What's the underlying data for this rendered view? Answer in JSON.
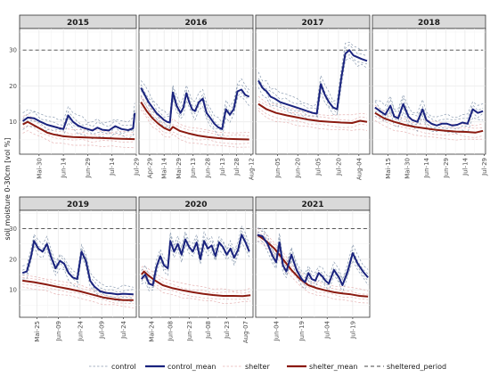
{
  "colors": {
    "control": "#8a9bb0",
    "control_mean": "#1a237e",
    "shelter": "#e6b3b3",
    "shelter_mean": "#8b1a10",
    "sheltered_period": "#444444"
  },
  "ylabel": "soil moisture 0-30cm [vol %]",
  "legend": [
    {
      "key": "control",
      "label": "control",
      "style": "dashed-light"
    },
    {
      "key": "control_mean",
      "label": "control_mean",
      "style": "solid-thick"
    },
    {
      "key": "shelter",
      "label": "shelter",
      "style": "dashed-light"
    },
    {
      "key": "shelter_mean",
      "label": "shelter_mean",
      "style": "solid-thick"
    },
    {
      "key": "sheltered_period",
      "label": "sheltered_period",
      "style": "dashed"
    }
  ],
  "chart_data": [
    {
      "type": "line",
      "title": "2015",
      "xlabel": "",
      "ylabel": "soil moisture 0-30cm [vol %]",
      "ylim": [
        1,
        36
      ],
      "yticks": [
        10,
        20,
        30
      ],
      "grid": true,
      "xlim": [
        "2015-05-18",
        "2015-07-29"
      ],
      "xticks": [
        "Mai-30",
        "Jun-14",
        "Jun-29",
        "Jul-14",
        "Jul-29"
      ],
      "sheltered_period": {
        "y": 30,
        "x": [
          "2015-05-20",
          "2015-07-28"
        ]
      },
      "series": [
        {
          "name": "control_mean",
          "x": [
            "2015-05-20",
            "2015-05-23",
            "2015-05-27",
            "2015-05-31",
            "2015-06-04",
            "2015-06-08",
            "2015-06-11",
            "2015-06-14",
            "2015-06-17",
            "2015-06-20",
            "2015-06-23",
            "2015-06-26",
            "2015-06-29",
            "2015-07-02",
            "2015-07-05",
            "2015-07-08",
            "2015-07-12",
            "2015-07-16",
            "2015-07-20",
            "2015-07-24",
            "2015-07-27",
            "2015-07-28"
          ],
          "values": [
            10.2,
            11.2,
            11.0,
            10.0,
            9.2,
            8.7,
            8.3,
            8.0,
            11.8,
            10.0,
            9.0,
            8.4,
            8.0,
            7.6,
            8.4,
            7.8,
            7.6,
            8.8,
            8.0,
            7.7,
            8.2,
            12.5
          ]
        },
        {
          "name": "shelter_mean",
          "x": [
            "2015-05-20",
            "2015-05-23",
            "2015-05-27",
            "2015-05-31",
            "2015-06-04",
            "2015-06-08",
            "2015-06-14",
            "2015-06-20",
            "2015-06-26",
            "2015-07-02",
            "2015-07-08",
            "2015-07-14",
            "2015-07-20",
            "2015-07-28"
          ],
          "values": [
            9.3,
            10.0,
            9.0,
            8.0,
            7.0,
            6.5,
            6.0,
            5.8,
            5.7,
            5.6,
            5.5,
            5.4,
            5.3,
            5.2
          ]
        }
      ]
    },
    {
      "type": "line",
      "title": "2016",
      "xlabel": "",
      "ylabel": "",
      "ylim": [
        1,
        36
      ],
      "yticks": [
        10,
        20,
        30
      ],
      "grid": true,
      "xlim": [
        "2016-04-18",
        "2016-08-14"
      ],
      "xticks": [
        "Apr-29",
        "Mai-14",
        "Mai-29",
        "Jun-13",
        "Jun-28",
        "Jul-13",
        "Jul-28",
        "Aug-12"
      ],
      "sheltered_period": {
        "y": 30,
        "x": [
          "2016-04-19",
          "2016-08-12"
        ]
      },
      "series": [
        {
          "name": "control_mean",
          "x": [
            "2016-04-20",
            "2016-04-24",
            "2016-04-28",
            "2016-05-02",
            "2016-05-06",
            "2016-05-10",
            "2016-05-14",
            "2016-05-17",
            "2016-05-20",
            "2016-05-23",
            "2016-05-27",
            "2016-05-31",
            "2016-06-03",
            "2016-06-06",
            "2016-06-09",
            "2016-06-12",
            "2016-06-15",
            "2016-06-19",
            "2016-06-23",
            "2016-06-27",
            "2016-07-01",
            "2016-07-05",
            "2016-07-09",
            "2016-07-13",
            "2016-07-17",
            "2016-07-21",
            "2016-07-25",
            "2016-07-29",
            "2016-08-02",
            "2016-08-06",
            "2016-08-10"
          ],
          "values": [
            19.5,
            17.5,
            15.5,
            14.0,
            12.5,
            11.5,
            10.5,
            10.0,
            9.8,
            18.2,
            14.5,
            12.5,
            14.0,
            18.0,
            15.5,
            13.5,
            13.0,
            15.5,
            16.5,
            12.5,
            11.0,
            9.5,
            8.5,
            8.0,
            13.5,
            12.0,
            13.5,
            18.5,
            19.0,
            17.5,
            17.0
          ]
        },
        {
          "name": "shelter_mean",
          "x": [
            "2016-04-20",
            "2016-04-26",
            "2016-05-02",
            "2016-05-08",
            "2016-05-14",
            "2016-05-20",
            "2016-05-23",
            "2016-05-30",
            "2016-06-08",
            "2016-06-18",
            "2016-06-28",
            "2016-07-08",
            "2016-07-18",
            "2016-07-28",
            "2016-08-10"
          ],
          "values": [
            15.5,
            13.0,
            11.0,
            9.5,
            8.3,
            7.6,
            8.6,
            7.5,
            6.8,
            6.2,
            5.8,
            5.5,
            5.3,
            5.2,
            5.1
          ]
        }
      ]
    },
    {
      "type": "line",
      "title": "2017",
      "xlabel": "",
      "ylabel": "",
      "ylim": [
        1,
        36
      ],
      "yticks": [
        10,
        20,
        30
      ],
      "grid": true,
      "xlim": [
        "2017-05-20",
        "2017-08-12"
      ],
      "xticks": [
        "Jun-05",
        "Jun-20",
        "Jul-05",
        "Jul-20",
        "Aug-04"
      ],
      "sheltered_period": {
        "y": 30,
        "x": [
          "2017-05-22",
          "2017-08-10"
        ]
      },
      "series": [
        {
          "name": "control_mean",
          "x": [
            "2017-05-22",
            "2017-05-25",
            "2017-05-28",
            "2017-05-31",
            "2017-06-03",
            "2017-06-07",
            "2017-06-11",
            "2017-06-15",
            "2017-06-19",
            "2017-06-23",
            "2017-06-27",
            "2017-07-01",
            "2017-07-04",
            "2017-07-07",
            "2017-07-10",
            "2017-07-13",
            "2017-07-16",
            "2017-07-19",
            "2017-07-22",
            "2017-07-25",
            "2017-07-28",
            "2017-07-31",
            "2017-08-03",
            "2017-08-06",
            "2017-08-10"
          ],
          "values": [
            21.5,
            19.5,
            18.5,
            17.0,
            16.5,
            15.5,
            15.0,
            14.5,
            14.0,
            13.5,
            13.0,
            12.5,
            12.3,
            20.5,
            17.5,
            15.5,
            14.0,
            13.5,
            22.0,
            29.0,
            30.0,
            28.5,
            28.0,
            27.5,
            27.0
          ]
        },
        {
          "name": "shelter_mean",
          "x": [
            "2017-05-22",
            "2017-05-28",
            "2017-06-04",
            "2017-06-12",
            "2017-06-20",
            "2017-06-28",
            "2017-07-06",
            "2017-07-14",
            "2017-07-22",
            "2017-07-30",
            "2017-08-05",
            "2017-08-10"
          ],
          "values": [
            15.0,
            13.5,
            12.5,
            11.8,
            11.2,
            10.6,
            10.2,
            10.0,
            9.8,
            9.7,
            10.3,
            10.0
          ]
        }
      ]
    },
    {
      "type": "line",
      "title": "2018",
      "xlabel": "",
      "ylabel": "",
      "ylim": [
        1,
        36
      ],
      "yticks": [
        10,
        20,
        30
      ],
      "grid": true,
      "xlim": [
        "2018-05-03",
        "2018-07-30"
      ],
      "xticks": [
        "Mai-15",
        "Mai-30",
        "Jun-14",
        "Jun-29",
        "Jul-14",
        "Jul-29"
      ],
      "sheltered_period": {
        "y": 30,
        "x": [
          "2018-05-05",
          "2018-07-28"
        ]
      },
      "series": [
        {
          "name": "control_mean",
          "x": [
            "2018-05-05",
            "2018-05-09",
            "2018-05-13",
            "2018-05-17",
            "2018-05-20",
            "2018-05-23",
            "2018-05-27",
            "2018-05-31",
            "2018-06-03",
            "2018-06-07",
            "2018-06-11",
            "2018-06-14",
            "2018-06-18",
            "2018-06-22",
            "2018-06-26",
            "2018-06-30",
            "2018-07-04",
            "2018-07-08",
            "2018-07-12",
            "2018-07-16",
            "2018-07-20",
            "2018-07-24",
            "2018-07-28"
          ],
          "values": [
            14.0,
            13.0,
            12.0,
            14.5,
            11.5,
            11.0,
            15.0,
            11.5,
            10.5,
            10.0,
            13.5,
            10.5,
            9.5,
            9.0,
            9.5,
            9.5,
            9.0,
            9.2,
            9.8,
            9.5,
            13.5,
            12.5,
            13.0
          ]
        },
        {
          "name": "shelter_mean",
          "x": [
            "2018-05-05",
            "2018-05-12",
            "2018-05-20",
            "2018-05-28",
            "2018-06-05",
            "2018-06-13",
            "2018-06-21",
            "2018-06-29",
            "2018-07-07",
            "2018-07-15",
            "2018-07-22",
            "2018-07-28"
          ],
          "values": [
            12.5,
            11.0,
            10.0,
            9.2,
            8.6,
            8.2,
            7.8,
            7.5,
            7.3,
            7.2,
            7.0,
            7.5
          ]
        }
      ]
    },
    {
      "type": "line",
      "title": "2019",
      "xlabel": "",
      "ylabel": "soil moisture 0-30cm [vol %]",
      "ylim": [
        1,
        36
      ],
      "yticks": [
        10,
        20,
        30
      ],
      "grid": true,
      "xlim": [
        "2019-05-13",
        "2019-08-02"
      ],
      "xticks": [
        "Mai-25",
        "Jun-09",
        "Jun-24",
        "Jul-09",
        "Jul-24"
      ],
      "sheltered_period": {
        "y": 30,
        "x": [
          "2019-05-15",
          "2019-07-31"
        ]
      },
      "series": [
        {
          "name": "control_mean",
          "x": [
            "2019-05-15",
            "2019-05-18",
            "2019-05-21",
            "2019-05-23",
            "2019-05-26",
            "2019-05-29",
            "2019-06-01",
            "2019-06-04",
            "2019-06-07",
            "2019-06-10",
            "2019-06-13",
            "2019-06-16",
            "2019-06-19",
            "2019-06-22",
            "2019-06-25",
            "2019-06-28",
            "2019-07-01",
            "2019-07-04",
            "2019-07-08",
            "2019-07-12",
            "2019-07-16",
            "2019-07-20",
            "2019-07-24",
            "2019-07-31"
          ],
          "values": [
            15.5,
            16.0,
            21.0,
            26.0,
            23.5,
            22.5,
            25.0,
            20.5,
            17.0,
            19.5,
            18.5,
            15.5,
            14.0,
            13.5,
            22.5,
            19.5,
            13.0,
            11.0,
            9.5,
            9.0,
            8.8,
            8.5,
            8.7,
            8.5
          ]
        },
        {
          "name": "shelter_mean",
          "x": [
            "2019-05-15",
            "2019-05-23",
            "2019-05-31",
            "2019-06-08",
            "2019-06-16",
            "2019-06-24",
            "2019-07-02",
            "2019-07-10",
            "2019-07-18",
            "2019-07-24",
            "2019-07-31"
          ],
          "values": [
            13.0,
            12.5,
            11.8,
            11.0,
            10.3,
            9.5,
            8.5,
            7.5,
            6.9,
            6.6,
            6.6
          ]
        }
      ]
    },
    {
      "type": "line",
      "title": "2020",
      "xlabel": "",
      "ylabel": "",
      "ylim": [
        1,
        36
      ],
      "yticks": [
        10,
        20,
        30
      ],
      "grid": true,
      "xlim": [
        "2020-05-14",
        "2020-08-13"
      ],
      "xticks": [
        "Mai-24",
        "Jun-08",
        "Jun-23",
        "Jul-08",
        "Jul-23",
        "Aug-07"
      ],
      "sheltered_period": {
        "y": 30,
        "x": [
          "2020-05-15",
          "2020-08-11"
        ]
      },
      "series": [
        {
          "name": "control_mean",
          "x": [
            "2020-05-16",
            "2020-05-19",
            "2020-05-22",
            "2020-05-25",
            "2020-05-28",
            "2020-05-31",
            "2020-06-03",
            "2020-06-06",
            "2020-06-08",
            "2020-06-11",
            "2020-06-14",
            "2020-06-17",
            "2020-06-20",
            "2020-06-23",
            "2020-06-26",
            "2020-06-29",
            "2020-07-02",
            "2020-07-05",
            "2020-07-08",
            "2020-07-11",
            "2020-07-14",
            "2020-07-17",
            "2020-07-20",
            "2020-07-23",
            "2020-07-26",
            "2020-07-29",
            "2020-08-01",
            "2020-08-04",
            "2020-08-07",
            "2020-08-10"
          ],
          "values": [
            13.5,
            15.0,
            12.0,
            11.5,
            17.5,
            21.0,
            18.0,
            17.0,
            26.0,
            22.5,
            25.0,
            21.5,
            26.5,
            24.0,
            22.5,
            25.5,
            20.0,
            26.0,
            23.5,
            24.5,
            21.0,
            25.5,
            24.0,
            21.5,
            23.5,
            20.5,
            23.0,
            28.0,
            25.5,
            22.5
          ]
        },
        {
          "name": "shelter_mean",
          "x": [
            "2020-05-16",
            "2020-05-18",
            "2020-05-22",
            "2020-05-27",
            "2020-06-02",
            "2020-06-10",
            "2020-06-18",
            "2020-06-26",
            "2020-07-04",
            "2020-07-12",
            "2020-07-20",
            "2020-07-28",
            "2020-08-05",
            "2020-08-11"
          ],
          "values": [
            15.0,
            16.0,
            14.5,
            13.0,
            11.5,
            10.5,
            9.8,
            9.2,
            8.7,
            8.3,
            8.0,
            8.0,
            7.9,
            8.2
          ]
        }
      ]
    },
    {
      "type": "line",
      "title": "2021",
      "xlabel": "",
      "ylabel": "",
      "ylim": [
        1,
        36
      ],
      "yticks": [
        10,
        20,
        30
      ],
      "grid": true,
      "xlim": [
        "2021-05-23",
        "2021-07-29"
      ],
      "xticks": [
        "Jun-04",
        "Jun-19",
        "Jul-04",
        "Jul-19"
      ],
      "sheltered_period": {
        "y": 30,
        "x": [
          "2021-05-24",
          "2021-07-28"
        ]
      },
      "series": [
        {
          "name": "control_mean",
          "x": [
            "2021-05-24",
            "2021-05-27",
            "2021-05-30",
            "2021-06-02",
            "2021-06-04",
            "2021-06-06",
            "2021-06-08",
            "2021-06-10",
            "2021-06-13",
            "2021-06-16",
            "2021-06-19",
            "2021-06-21",
            "2021-06-23",
            "2021-06-25",
            "2021-06-27",
            "2021-06-29",
            "2021-07-01",
            "2021-07-03",
            "2021-07-05",
            "2021-07-08",
            "2021-07-11",
            "2021-07-13",
            "2021-07-16",
            "2021-07-19",
            "2021-07-22",
            "2021-07-25",
            "2021-07-28"
          ],
          "values": [
            28.0,
            27.5,
            25.0,
            21.0,
            19.0,
            25.5,
            18.0,
            16.0,
            21.5,
            16.5,
            13.5,
            12.5,
            15.5,
            13.5,
            13.0,
            15.5,
            14.5,
            13.0,
            12.0,
            16.5,
            14.0,
            11.5,
            16.0,
            22.0,
            18.5,
            16.0,
            14.0
          ]
        },
        {
          "name": "shelter_mean",
          "x": [
            "2021-05-24",
            "2021-05-29",
            "2021-06-03",
            "2021-06-08",
            "2021-06-13",
            "2021-06-18",
            "2021-06-23",
            "2021-06-28",
            "2021-07-03",
            "2021-07-08",
            "2021-07-13",
            "2021-07-18",
            "2021-07-23",
            "2021-07-28"
          ],
          "values": [
            28.0,
            26.0,
            23.5,
            20.0,
            16.5,
            13.5,
            11.5,
            10.5,
            9.8,
            9.2,
            8.8,
            8.5,
            8.0,
            7.8
          ]
        }
      ]
    }
  ]
}
